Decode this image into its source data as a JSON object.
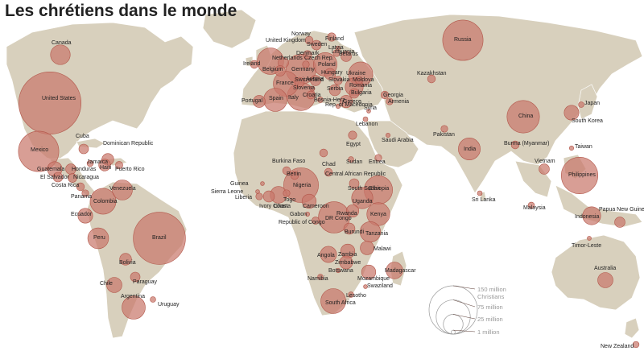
{
  "title": "Les chrétiens dans le monde",
  "colors": {
    "land": "#d8d0bd",
    "bubble": "#c9786c",
    "bubble_stroke": "#b2564a",
    "ocean": "#ffffff"
  },
  "legend": {
    "items": [
      {
        "label": "150 million",
        "value": 150
      },
      {
        "label": "Christians",
        "value": null
      },
      {
        "label": "75 million",
        "value": 75
      },
      {
        "label": "25 million",
        "value": 25
      },
      {
        "label": "1 million",
        "value": 1
      }
    ]
  },
  "countries": [
    {
      "name": "Canada",
      "value": 25
    },
    {
      "name": "United States",
      "value": 250
    },
    {
      "name": "Mexico",
      "value": 105
    },
    {
      "name": "Cuba",
      "value": 6
    },
    {
      "name": "Dominican Republic",
      "value": 9
    },
    {
      "name": "Jamaica",
      "value": 2.5
    },
    {
      "name": "Haiti",
      "value": 9
    },
    {
      "name": "Puerto Rico",
      "value": 3.5
    },
    {
      "name": "Guatemala",
      "value": 14
    },
    {
      "name": "Honduras",
      "value": 7
    },
    {
      "name": "El Salvador",
      "value": 6
    },
    {
      "name": "Nicaragua",
      "value": 5
    },
    {
      "name": "Costa Rica",
      "value": 4
    },
    {
      "name": "Panama",
      "value": 3
    },
    {
      "name": "Venezuela",
      "value": 26
    },
    {
      "name": "Colombia",
      "value": 43
    },
    {
      "name": "Ecuador",
      "value": 14
    },
    {
      "name": "Peru",
      "value": 28
    },
    {
      "name": "Brazil",
      "value": 175
    },
    {
      "name": "Bolivia",
      "value": 9
    },
    {
      "name": "Paraguay",
      "value": 6
    },
    {
      "name": "Chile",
      "value": 15
    },
    {
      "name": "Argentina",
      "value": 35
    },
    {
      "name": "Uruguay",
      "value": 2
    },
    {
      "name": "Ireland",
      "value": 4
    },
    {
      "name": "United Kingdom",
      "value": 45
    },
    {
      "name": "Norway",
      "value": 4
    },
    {
      "name": "Sweden",
      "value": 6
    },
    {
      "name": "Finland",
      "value": 4.5
    },
    {
      "name": "Denmark",
      "value": 4.5
    },
    {
      "name": "Netherlands",
      "value": 7
    },
    {
      "name": "Belgium",
      "value": 7
    },
    {
      "name": "Germany",
      "value": 58
    },
    {
      "name": "Lithuania",
      "value": 3
    },
    {
      "name": "Latvia",
      "value": 1.3
    },
    {
      "name": "Belarus",
      "value": 7
    },
    {
      "name": "Poland",
      "value": 36
    },
    {
      "name": "Czech Rep.",
      "value": 3
    },
    {
      "name": "Slovakia",
      "value": 4.5
    },
    {
      "name": "Hungary",
      "value": 8
    },
    {
      "name": "Austria",
      "value": 7
    },
    {
      "name": "Switzerland",
      "value": 6
    },
    {
      "name": "France",
      "value": 40
    },
    {
      "name": "Slovenia",
      "value": 1.6
    },
    {
      "name": "Croatia",
      "value": 4
    },
    {
      "name": "Bosnia-Herz.",
      "value": 2
    },
    {
      "name": "Serbia",
      "value": 8
    },
    {
      "name": "Romania",
      "value": 21
    },
    {
      "name": "Moldova",
      "value": 3.5
    },
    {
      "name": "Ukraine",
      "value": 38
    },
    {
      "name": "Bulgaria",
      "value": 6
    },
    {
      "name": "Rep. of Macedonia",
      "value": 1.3
    },
    {
      "name": "Greece",
      "value": 10
    },
    {
      "name": "Italy",
      "value": 50
    },
    {
      "name": "Spain",
      "value": 35
    },
    {
      "name": "Portugal",
      "value": 9.5
    },
    {
      "name": "Russia",
      "value": 105
    },
    {
      "name": "Georgia",
      "value": 3.8
    },
    {
      "name": "Armenia",
      "value": 3
    },
    {
      "name": "Kazakhstan",
      "value": 4
    },
    {
      "name": "Syria",
      "value": 1
    },
    {
      "name": "Lebanon",
      "value": 1.5
    },
    {
      "name": "Egypt",
      "value": 4.5
    },
    {
      "name": "Saudi Arabia",
      "value": 1.2
    },
    {
      "name": "Pakistan",
      "value": 3
    },
    {
      "name": "India",
      "value": 31
    },
    {
      "name": "Sri Lanka",
      "value": 1.5
    },
    {
      "name": "China",
      "value": 68
    },
    {
      "name": "South Korea",
      "value": 14
    },
    {
      "name": "Japan",
      "value": 2
    },
    {
      "name": "Taiwan",
      "value": 1.3
    },
    {
      "name": "Burma (Myanmar)",
      "value": 4
    },
    {
      "name": "Vietnam",
      "value": 7
    },
    {
      "name": "Philippines",
      "value": 86
    },
    {
      "name": "Malaysia",
      "value": 2.6
    },
    {
      "name": "Indonesia",
      "value": 21
    },
    {
      "name": "Papua New Guinea",
      "value": 7
    },
    {
      "name": "Timor-Leste",
      "value": 1.1
    },
    {
      "name": "Australia",
      "value": 15
    },
    {
      "name": "New Zealand",
      "value": 2.5
    },
    {
      "name": "Chad",
      "value": 4
    },
    {
      "name": "Sudan",
      "value": 2
    },
    {
      "name": "Eritrea",
      "value": 3
    },
    {
      "name": "Ethiopia",
      "value": 52
    },
    {
      "name": "South Sudan",
      "value": 6
    },
    {
      "name": "Central African Republic",
      "value": 4
    },
    {
      "name": "Burkina Faso",
      "value": 4
    },
    {
      "name": "Benin",
      "value": 4
    },
    {
      "name": "Guinea",
      "value": 1
    },
    {
      "name": "Sierra Leone",
      "value": 1
    },
    {
      "name": "Liberia",
      "value": 3
    },
    {
      "name": "Ivory Coast",
      "value": 8
    },
    {
      "name": "Ghana",
      "value": 18
    },
    {
      "name": "Togo",
      "value": 3
    },
    {
      "name": "Nigeria",
      "value": 78
    },
    {
      "name": "Cameroon",
      "value": 13
    },
    {
      "name": "Gabon",
      "value": 1.2
    },
    {
      "name": "Republic of Congo",
      "value": 3.5
    },
    {
      "name": "DR Congo",
      "value": 63
    },
    {
      "name": "Uganda",
      "value": 29
    },
    {
      "name": "Kenya",
      "value": 34
    },
    {
      "name": "Rwanda",
      "value": 10
    },
    {
      "name": "Burundi",
      "value": 8
    },
    {
      "name": "Tanzania",
      "value": 27
    },
    {
      "name": "Angola",
      "value": 17
    },
    {
      "name": "Zambia",
      "value": 13
    },
    {
      "name": "Malawi",
      "value": 12
    },
    {
      "name": "Mozambique",
      "value": 13
    },
    {
      "name": "Zimbabwe",
      "value": 11
    },
    {
      "name": "Namibia",
      "value": 2
    },
    {
      "name": "Botswana",
      "value": 1.3
    },
    {
      "name": "Madagascar",
      "value": 18
    },
    {
      "name": "South Africa",
      "value": 40
    },
    {
      "name": "Lesotho",
      "value": 2
    },
    {
      "name": "Swaziland",
      "value": 1
    }
  ]
}
